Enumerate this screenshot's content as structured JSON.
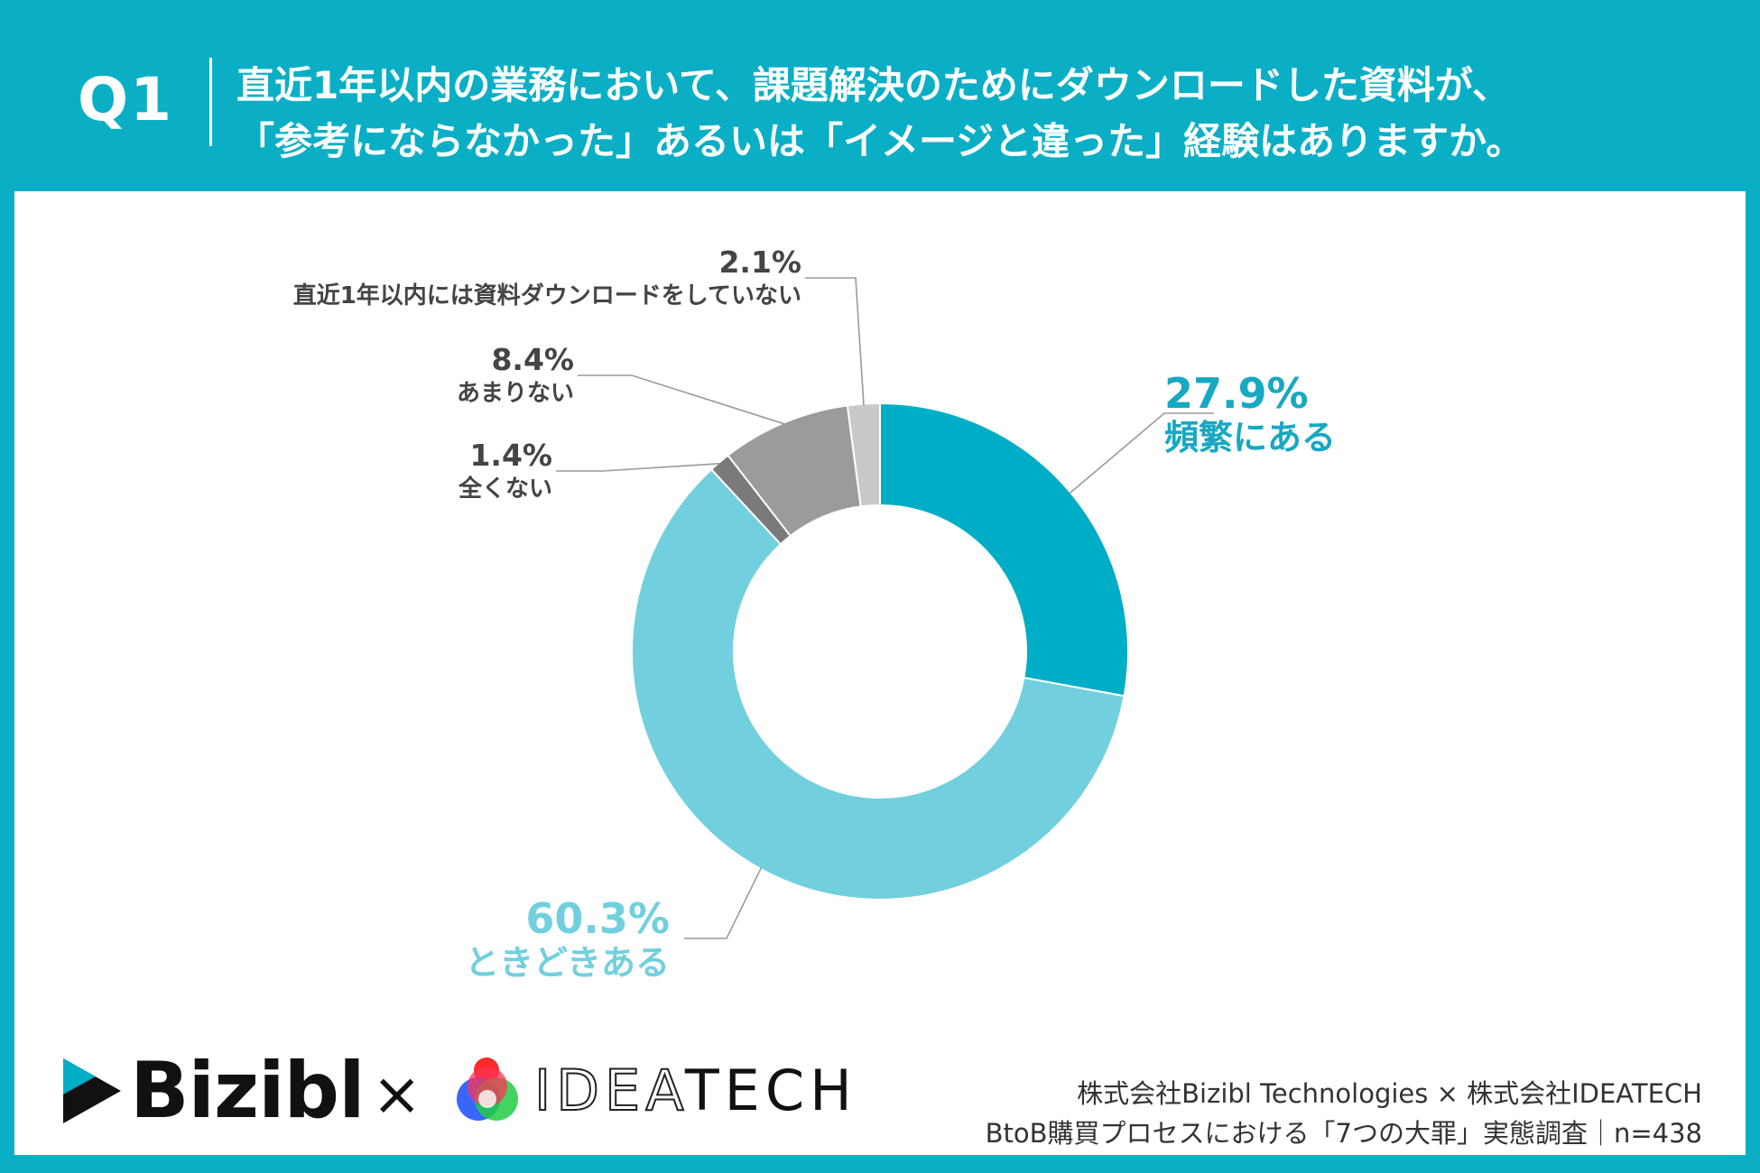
{
  "header": {
    "q_label": "Q1",
    "question_line1": "直近1年以内の業務において、課題解決のためにダウンロードした資料が、",
    "question_line2": "「参考にならなかった」あるいは「イメージと違った」経験はありますか。"
  },
  "chart_data": {
    "type": "pie",
    "donut": true,
    "slices": [
      {
        "label": "頻繁にある",
        "value": 27.9,
        "value_label": "27.9%",
        "color": "#00adc7"
      },
      {
        "label": "ときどきある",
        "value": 60.3,
        "value_label": "60.3%",
        "color": "#72d0de"
      },
      {
        "label": "全くない",
        "value": 1.4,
        "value_label": "1.4%",
        "color": "#7a7a7a"
      },
      {
        "label": "あまりない",
        "value": 8.4,
        "value_label": "8.4%",
        "color": "#9b9b9b"
      },
      {
        "label": "直近1年以内には資料ダウンロードをしていない",
        "value": 2.1,
        "value_label": "2.1%",
        "color": "#c9c9c9"
      }
    ]
  },
  "footer": {
    "logo_left": "Bizibl",
    "times": "×",
    "logo_right_prefix": "IDEA",
    "logo_right_suffix": "TECH",
    "credit_line1": "株式会社Bizibl Technologies × 株式会社IDEATECH",
    "credit_line2": "BtoB購買プロセスにおける「7つの大罪」実態調査｜n=438"
  },
  "colors": {
    "brand": "#0aafc6",
    "text_dark": "#333333"
  }
}
